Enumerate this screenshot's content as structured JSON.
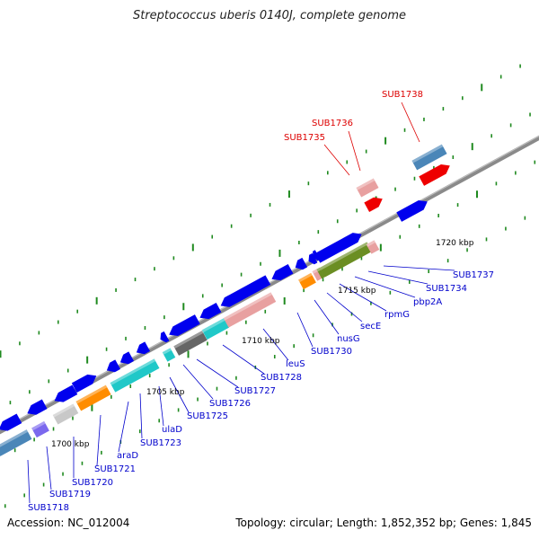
{
  "title": "Streptococcus uberis 0140J, complete genome",
  "footer": {
    "accession": "Accession: NC_012004",
    "topology": "Topology: circular; Length: 1,852,352 bp; Genes: 1,845"
  },
  "colors": {
    "backbone": "#8a8a8a",
    "ticks": "#1f8a1f",
    "gene_label": "#0000cc",
    "highlight_label": "#dd0000",
    "blue": "#0000ee",
    "steelblue": "#4a86b8",
    "red": "#ee0000",
    "pink": "#e8a0a0",
    "orange": "#ff8c00",
    "cyan": "#20c8c8",
    "darkgray": "#666666",
    "lightgray": "#c8c8c8",
    "olive": "#6b8e23",
    "purple": "#7b68ee"
  },
  "scale_labels": [
    "1700 kbp",
    "1705 kbp",
    "1710 kbp",
    "1715 kbp",
    "1720 kbp"
  ],
  "gene_labels": [
    "SUB1718",
    "SUB1719",
    "SUB1720",
    "SUB1721",
    "araD",
    "SUB1723",
    "ulaD",
    "SUB1725",
    "SUB1726",
    "SUB1727",
    "SUB1728",
    "leuS",
    "SUB1730",
    "nusG",
    "secE",
    "rpmG",
    "pbp2A",
    "SUB1734",
    "SUB1737"
  ],
  "highlight_labels": [
    "SUB1735",
    "SUB1736",
    "SUB1738"
  ]
}
